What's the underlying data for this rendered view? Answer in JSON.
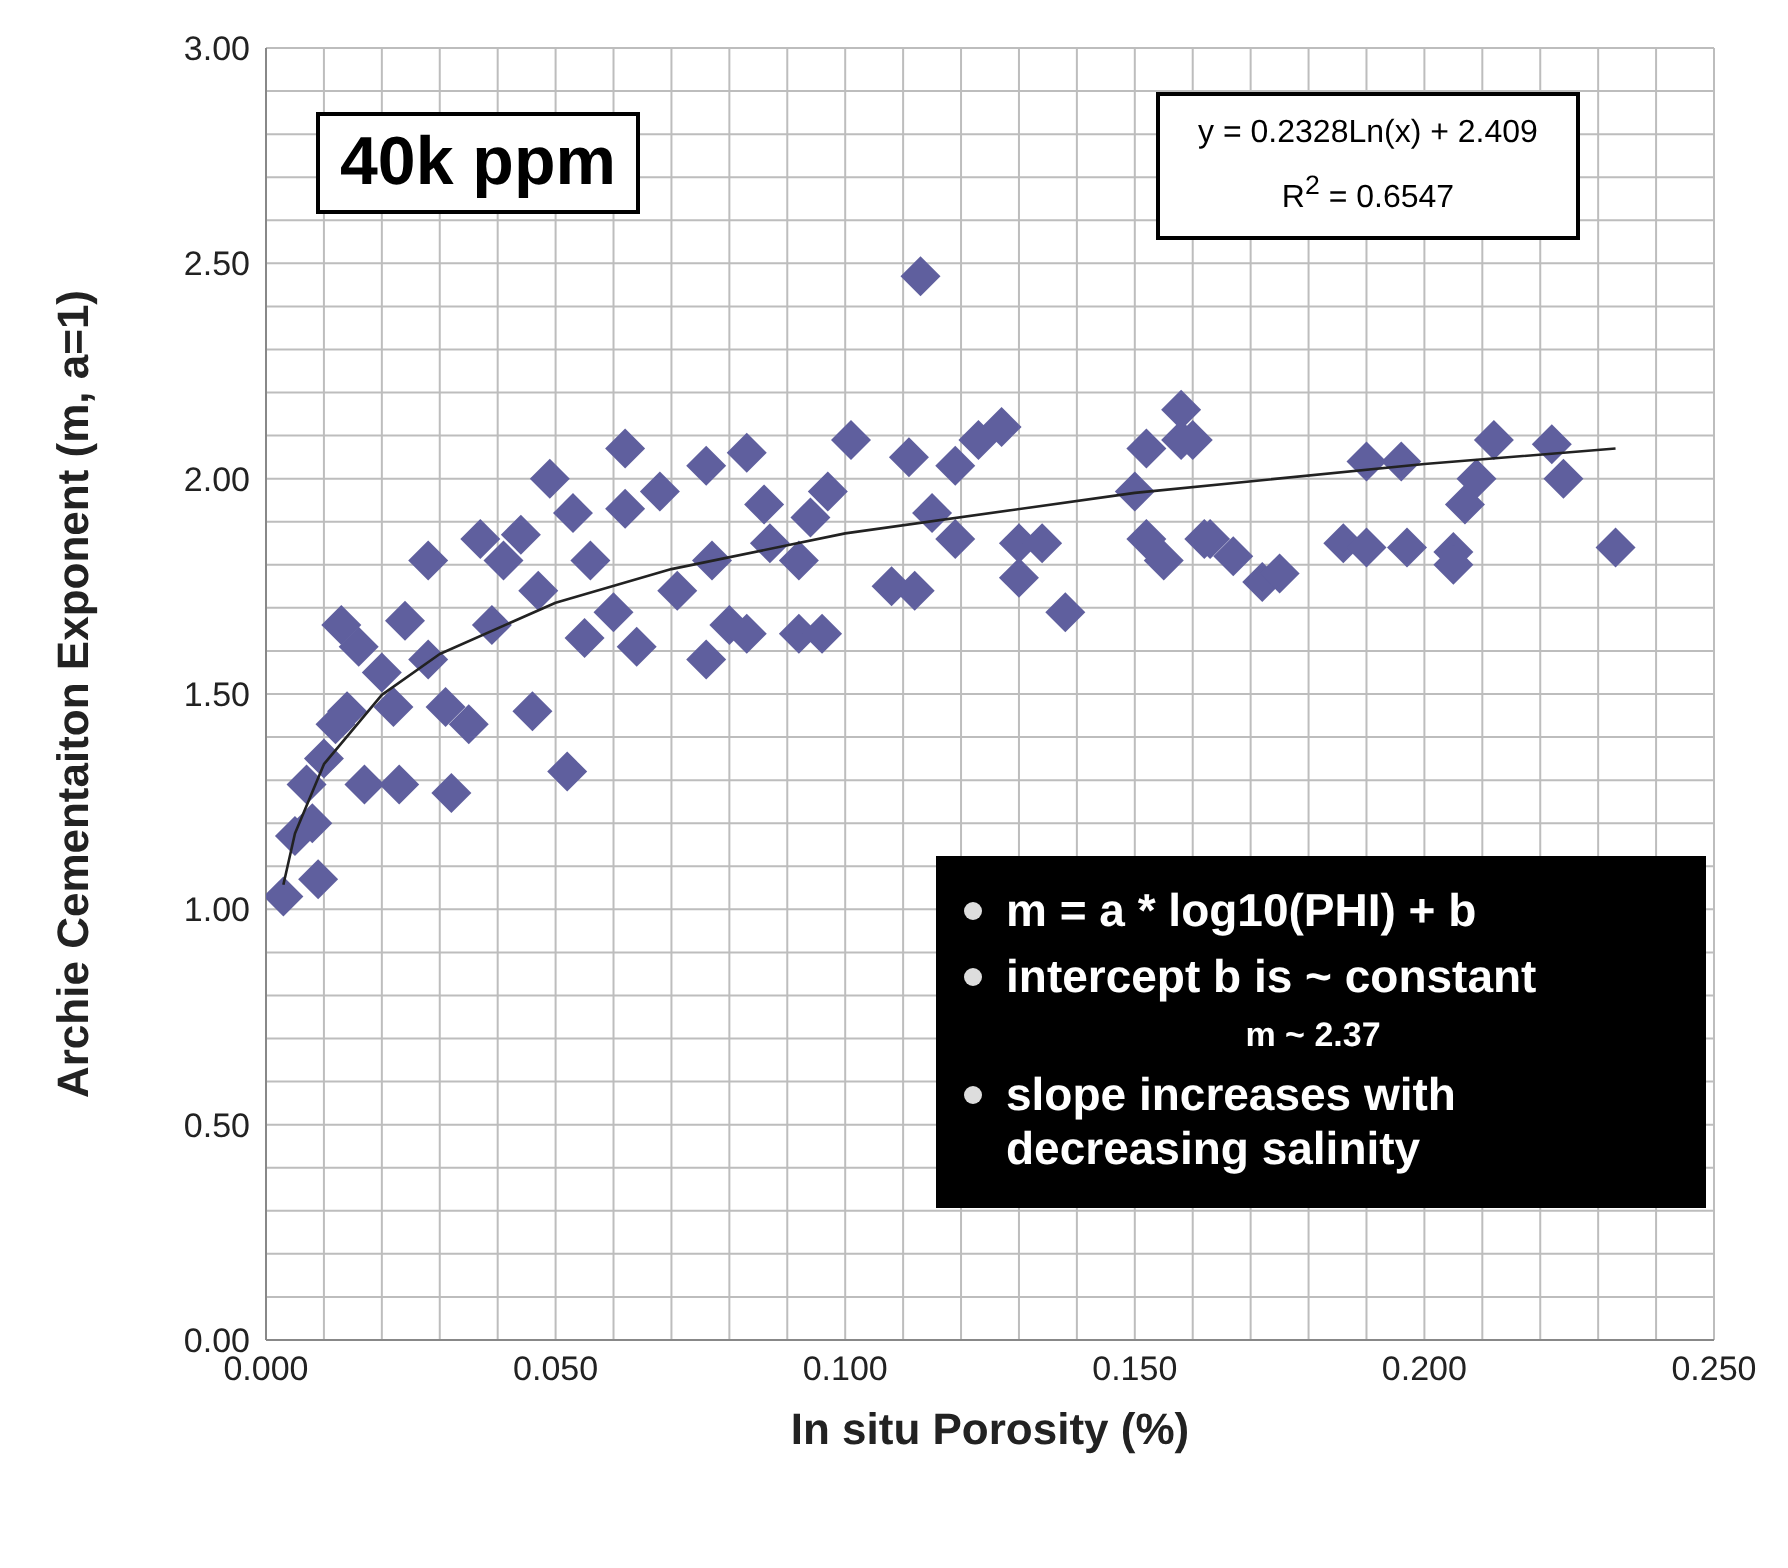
{
  "chart_data": {
    "type": "scatter",
    "xlabel": "In situ Porosity (%)",
    "ylabel": "Archie Cementaiton Exponent (m, a=1)",
    "annotations": [
      "40k ppm",
      "y = 0.2328Ln(x) + 2.409",
      "R$^{2}$ = 0.6547",
      "m = a * log10(PHI) + b",
      "intercept b is ~ constant",
      "m ~ 2.37",
      "slope increases with decreasing salinity"
    ],
    "xlim": [
      0,
      0.25
    ],
    "ylim": [
      0,
      3
    ],
    "xticks": [
      {
        "value": 0,
        "label": "0.000"
      },
      {
        "value": 0.01,
        "label": null
      },
      {
        "value": 0.02,
        "label": null
      },
      {
        "value": 0.03,
        "label": null
      },
      {
        "value": 0.04,
        "label": null
      },
      {
        "value": 0.05,
        "label": "0.050"
      },
      {
        "value": 0.06,
        "label": null
      },
      {
        "value": 0.07,
        "label": null
      },
      {
        "value": 0.08,
        "label": null
      },
      {
        "value": 0.09,
        "label": null
      },
      {
        "value": 0.1,
        "label": "0.100"
      },
      {
        "value": 0.11,
        "label": null
      },
      {
        "value": 0.12,
        "label": null
      },
      {
        "value": 0.13,
        "label": null
      },
      {
        "value": 0.14,
        "label": null
      },
      {
        "value": 0.15,
        "label": "0.150"
      },
      {
        "value": 0.16,
        "label": null
      },
      {
        "value": 0.17,
        "label": null
      },
      {
        "value": 0.18,
        "label": null
      },
      {
        "value": 0.19,
        "label": null
      },
      {
        "value": 0.2,
        "label": "0.200"
      },
      {
        "value": 0.21,
        "label": null
      },
      {
        "value": 0.22,
        "label": null
      },
      {
        "value": 0.23,
        "label": null
      },
      {
        "value": 0.24,
        "label": null
      },
      {
        "value": 0.25,
        "label": "0.250"
      }
    ],
    "yticks": [
      {
        "value": 0,
        "label": "0.00"
      },
      {
        "value": 0.1,
        "label": null
      },
      {
        "value": 0.2,
        "label": null
      },
      {
        "value": 0.3,
        "label": null
      },
      {
        "value": 0.4,
        "label": null
      },
      {
        "value": 0.5,
        "label": "0.50"
      },
      {
        "value": 0.6,
        "label": null
      },
      {
        "value": 0.7,
        "label": null
      },
      {
        "value": 0.8,
        "label": null
      },
      {
        "value": 0.9,
        "label": null
      },
      {
        "value": 1,
        "label": "1.00"
      },
      {
        "value": 1.1,
        "label": null
      },
      {
        "value": 1.2,
        "label": null
      },
      {
        "value": 1.3,
        "label": null
      },
      {
        "value": 1.4,
        "label": null
      },
      {
        "value": 1.5,
        "label": "1.50"
      },
      {
        "value": 1.6,
        "label": null
      },
      {
        "value": 1.7,
        "label": null
      },
      {
        "value": 1.8,
        "label": null
      },
      {
        "value": 1.9,
        "label": null
      },
      {
        "value": 2,
        "label": "2.00"
      },
      {
        "value": 2.1,
        "label": null
      },
      {
        "value": 2.2,
        "label": null
      },
      {
        "value": 2.3,
        "label": null
      },
      {
        "value": 2.4,
        "label": null
      },
      {
        "value": 2.5,
        "label": "2.50"
      },
      {
        "value": 2.6,
        "label": null
      },
      {
        "value": 2.7,
        "label": null
      },
      {
        "value": 2.8,
        "label": null
      },
      {
        "value": 2.9,
        "label": null
      },
      {
        "value": 3,
        "label": "3.00"
      }
    ],
    "grid": true,
    "marker": "diamond",
    "series": [
      {
        "color": "#5f5f9e",
        "x": [
          0.003,
          0.009,
          0.005,
          0.008,
          0.007,
          0.01,
          0.012,
          0.013,
          0.016,
          0.017,
          0.023,
          0.028,
          0.032,
          0.024,
          0.028,
          0.031,
          0.022,
          0.037,
          0.041,
          0.039,
          0.035,
          0.046,
          0.052,
          0.049,
          0.047,
          0.053,
          0.056,
          0.062,
          0.062,
          0.068,
          0.064,
          0.06,
          0.076,
          0.077,
          0.076,
          0.071,
          0.08,
          0.055,
          0.044,
          0.02,
          0.014,
          0.113,
          0.083,
          0.101,
          0.111,
          0.127,
          0.123,
          0.119,
          0.108,
          0.112,
          0.13,
          0.134,
          0.13,
          0.138,
          0.158,
          0.152,
          0.158,
          0.15,
          0.152,
          0.155,
          0.163,
          0.083,
          0.092,
          0.096,
          0.115,
          0.119,
          0.087,
          0.094,
          0.097,
          0.086,
          0.092,
          0.16,
          0.162,
          0.167,
          0.172,
          0.175,
          0.186,
          0.19,
          0.197,
          0.19,
          0.196,
          0.205,
          0.205,
          0.207,
          0.209,
          0.212,
          0.222,
          0.224,
          0.233
        ],
        "values": [
          1.03,
          1.07,
          1.17,
          1.2,
          1.29,
          1.35,
          1.43,
          1.66,
          1.61,
          1.29,
          1.29,
          1.81,
          1.27,
          1.67,
          1.58,
          1.47,
          1.47,
          1.86,
          1.81,
          1.66,
          1.43,
          1.46,
          1.32,
          2.0,
          1.74,
          1.92,
          1.81,
          2.07,
          1.93,
          1.97,
          1.61,
          1.69,
          1.58,
          1.81,
          2.03,
          1.74,
          1.66,
          1.63,
          1.87,
          1.55,
          1.46,
          2.47,
          2.06,
          2.09,
          2.05,
          2.12,
          2.09,
          2.03,
          1.75,
          1.74,
          1.85,
          1.85,
          1.77,
          1.69,
          2.16,
          2.07,
          2.09,
          1.97,
          1.86,
          1.81,
          1.86,
          1.64,
          1.64,
          1.64,
          1.92,
          1.86,
          1.85,
          1.91,
          1.97,
          1.94,
          1.81,
          2.09,
          1.86,
          1.82,
          1.76,
          1.78,
          1.85,
          1.84,
          1.84,
          2.04,
          2.04,
          1.83,
          1.8,
          1.94,
          2.0,
          2.09,
          2.08,
          2.0,
          1.84
        ]
      },
      {
        "type": "line",
        "color": "#222222",
        "marker": "none",
        "x": [
          0.003,
          0.005,
          0.01,
          0.02,
          0.03,
          0.05,
          0.07,
          0.1,
          0.15,
          0.2,
          0.233
        ],
        "values": [
          1.057,
          1.176,
          1.337,
          1.498,
          1.593,
          1.712,
          1.79,
          1.873,
          1.967,
          2.034,
          2.07
        ]
      }
    ]
  }
}
